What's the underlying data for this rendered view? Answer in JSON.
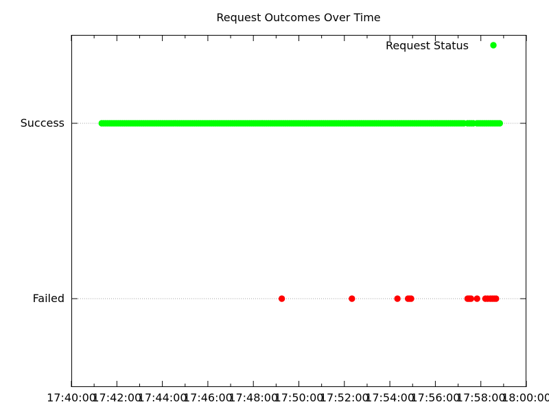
{
  "chart_data": {
    "type": "scatter",
    "title": "Request Outcomes Over Time",
    "xlabel": "",
    "ylabel": "",
    "x_axis": {
      "type": "time",
      "range": [
        "17:40:00",
        "18:00:00"
      ],
      "tick_labels": [
        "17:40:00",
        "17:42:00",
        "17:44:00",
        "17:46:00",
        "17:48:00",
        "17:50:00",
        "17:52:00",
        "17:54:00",
        "17:56:00",
        "17:58:00",
        "18:00:00"
      ],
      "minor_ticks_per_major": 2
    },
    "y_axis": {
      "type": "category",
      "categories": [
        "Failed",
        "Success"
      ]
    },
    "grid": {
      "x": false,
      "y": true
    },
    "legend": {
      "position": "top-right",
      "entries": [
        {
          "label": "Request Status",
          "color": "#00ff00"
        }
      ]
    },
    "colors": {
      "Success": "#00ff00",
      "Failed": "#ff0000"
    },
    "series": [
      {
        "name": "Request Status",
        "status": "Success",
        "color": "#00ff00",
        "x_start": "17:41:20",
        "x_end": "17:58:50",
        "interval_seconds": 5,
        "gaps": [
          {
            "from": "17:57:15",
            "to": "17:57:25"
          },
          {
            "from": "17:57:42",
            "to": "17:57:50"
          }
        ]
      },
      {
        "name": "Request Status",
        "status": "Failed",
        "color": "#ff0000",
        "x": [
          "17:49:15",
          "17:52:20",
          "17:54:20",
          "17:54:48",
          "17:54:52",
          "17:54:56",
          "17:57:25",
          "17:57:28",
          "17:57:31",
          "17:57:34",
          "17:57:50",
          "17:58:12",
          "17:58:18",
          "17:58:25",
          "17:58:30",
          "17:58:35",
          "17:58:40"
        ]
      }
    ]
  }
}
